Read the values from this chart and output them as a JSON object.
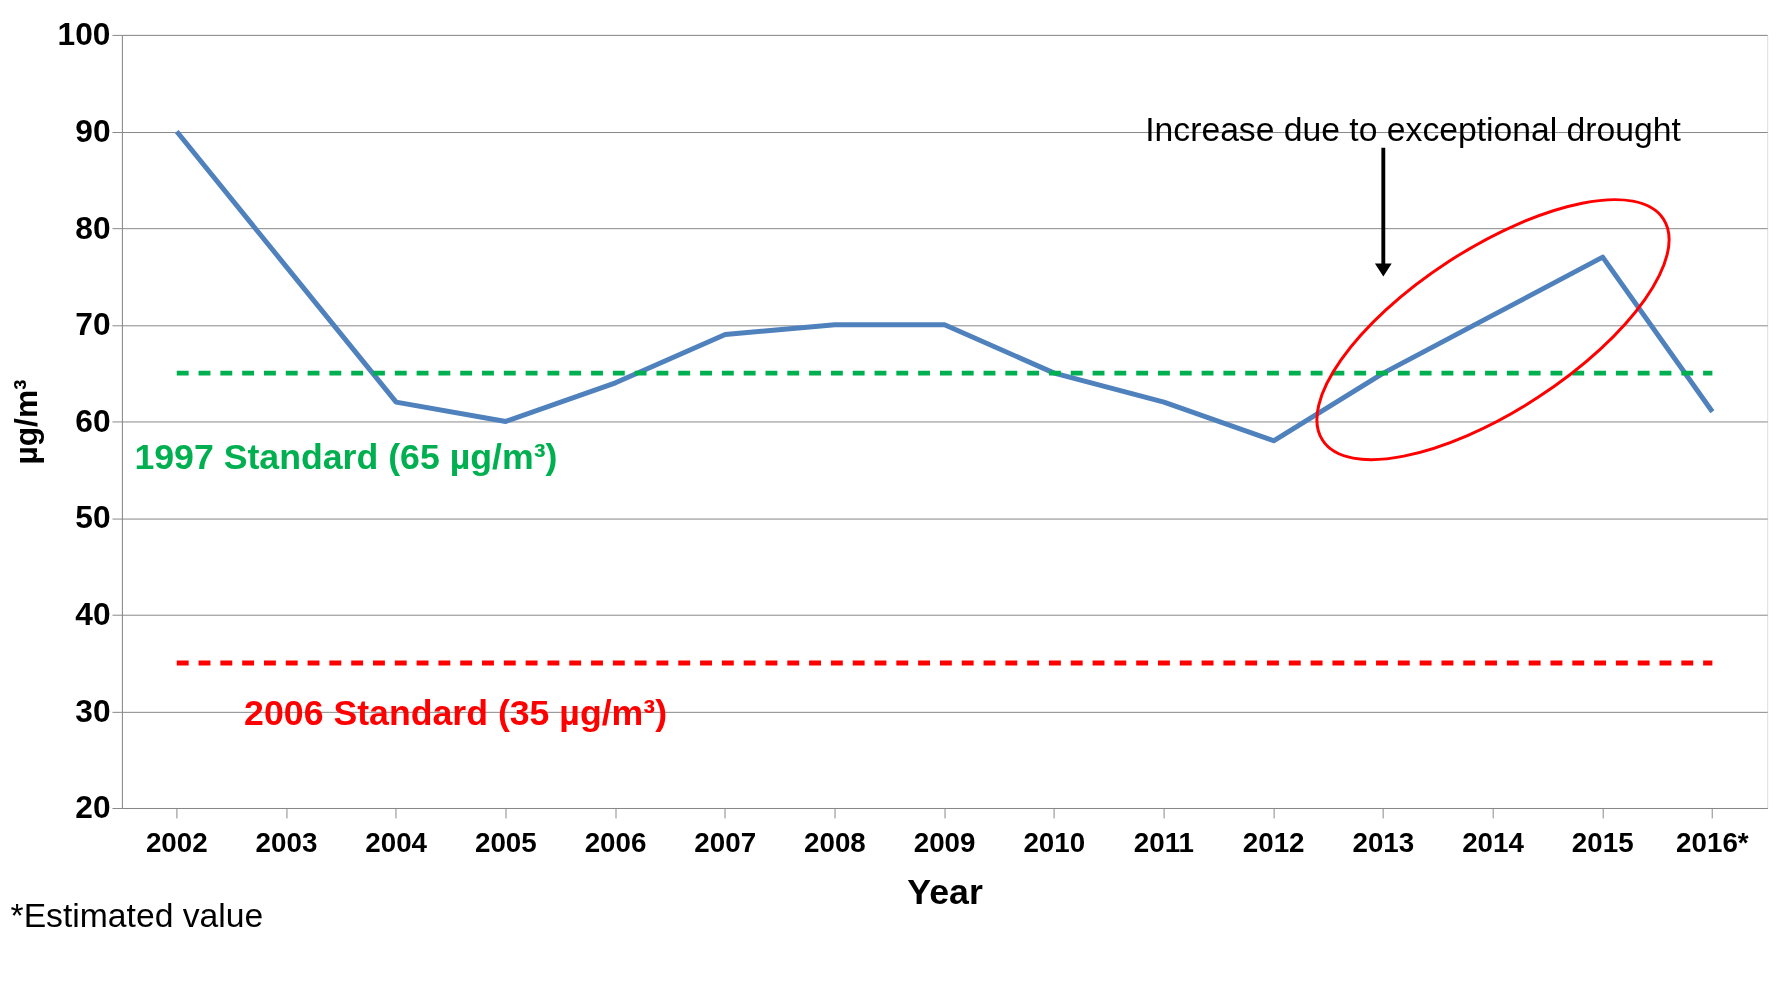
{
  "chart_data": {
    "type": "line",
    "xlabel": "Year",
    "ylabel": "µg/m³",
    "categories": [
      "2002",
      "2003",
      "2004",
      "2005",
      "2006",
      "2007",
      "2008",
      "2009",
      "2010",
      "2011",
      "2012",
      "2013",
      "2014",
      "2015",
      "2016*"
    ],
    "series": [
      {
        "color": "#4f81bd",
        "values": [
          90,
          76,
          62,
          60,
          64,
          69,
          70,
          70,
          65,
          62,
          58,
          65,
          71,
          77,
          61
        ]
      }
    ],
    "ylim": [
      20,
      100
    ],
    "yticks": [
      20,
      30,
      40,
      50,
      60,
      70,
      80,
      90,
      100
    ],
    "grid": "y",
    "marker": "none",
    "line_style": "solid",
    "ref_lines": [
      {
        "axis": "y",
        "value": 65,
        "label": "1997 Standard (65 µg/m³)",
        "color": "#00b050",
        "line_style": "dashed"
      },
      {
        "axis": "y",
        "value": 35,
        "label": "2006 Standard (35 µg/m³)",
        "color": "#ff0000",
        "line_style": "dashed"
      }
    ],
    "annotations": [
      "Increase due to exceptional drought",
      "*Estimated value"
    ]
  }
}
